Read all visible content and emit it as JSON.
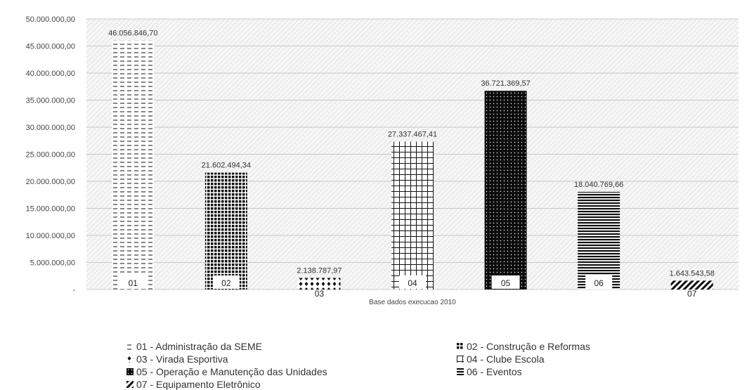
{
  "chart_data": {
    "type": "bar",
    "categories": [
      "01",
      "02",
      "03",
      "04",
      "05",
      "06",
      "07"
    ],
    "values": [
      46056846.7,
      21602494.34,
      2138787.97,
      27337467.41,
      36721369.57,
      18040769.66,
      1643543.58
    ],
    "value_labels": [
      "46.056.846,70",
      "21.602.494,34",
      "2.138.787,97",
      "27.337.467,41",
      "36.721.369,57",
      "18.040.769,66",
      "1.643.543,58"
    ],
    "y_ticks": [
      "-",
      "5.000.000,00",
      "10.000.000,00",
      "15.000.000,00",
      "20.000.000,00",
      "25.000.000,00",
      "30.000.000,00",
      "35.000.000,00",
      "40.000.000,00",
      "45.000.000,00",
      "50.000.000,00"
    ],
    "ylim": [
      0,
      50000000
    ],
    "xlabel": "Base dados execucao 2010",
    "grid": true,
    "legend_position": "bottom",
    "legend": [
      {
        "label": "01 - Administração da SEME",
        "pattern": "dashes"
      },
      {
        "label": "02 - Construção e Reformas",
        "pattern": "dense-grid"
      },
      {
        "label": "03 - Virada Esportiva",
        "pattern": "diamonds"
      },
      {
        "label": "04 - Clube Escola",
        "pattern": "grid"
      },
      {
        "label": "05 - Operação e Manutenção das Unidades",
        "pattern": "dots-on-black"
      },
      {
        "label": "06 - Eventos",
        "pattern": "horizontal-lines"
      },
      {
        "label": "07 - Equipamento Eletrônico",
        "pattern": "diagonal-stripes"
      }
    ]
  }
}
